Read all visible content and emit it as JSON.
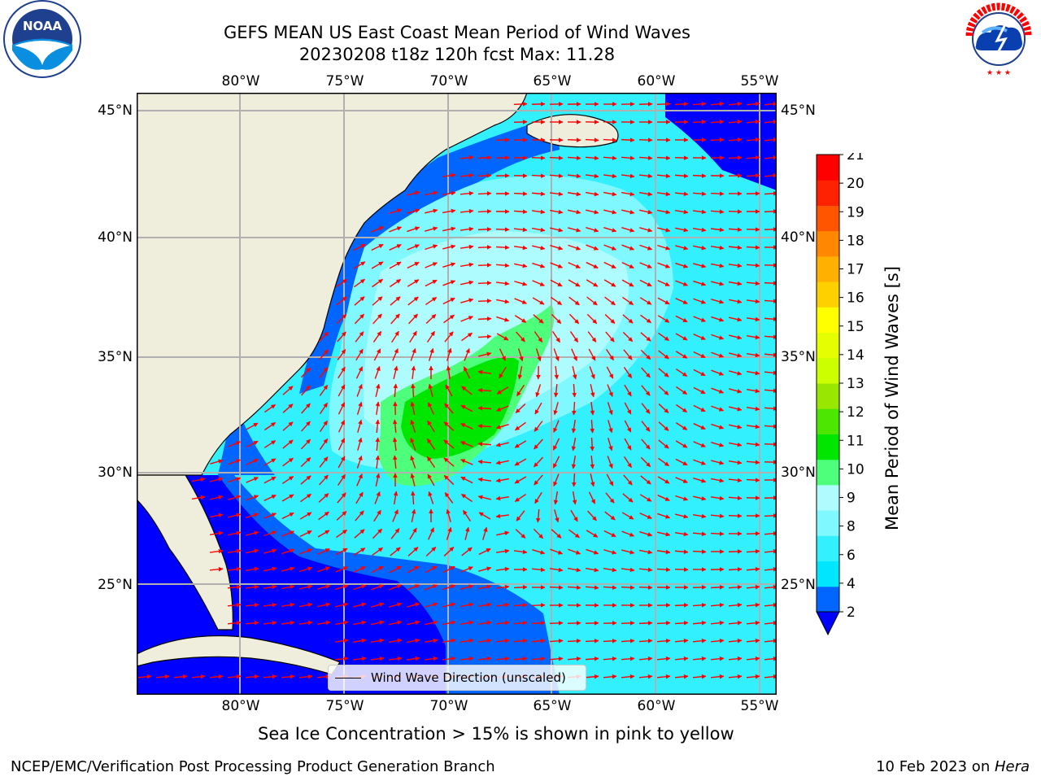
{
  "header": {
    "title_line1": "GEFS MEAN US East Coast Mean Period of Wind Waves",
    "title_line2": "20230208 t18z 120h fcst   Max: 11.28"
  },
  "logos": {
    "noaa": "NOAA",
    "nws": "NATIONAL WEATHER SERVICE"
  },
  "map": {
    "lon_ticks_top": [
      "80°W",
      "75°W",
      "70°W",
      "65°W",
      "60°W",
      "55°W"
    ],
    "lon_ticks_bottom": [
      "80°W",
      "75°W",
      "70°W",
      "65°W",
      "60°W",
      "55°W"
    ],
    "lat_ticks_left": [
      "45°N",
      "40°N",
      "35°N",
      "30°N",
      "25°N"
    ],
    "lat_ticks_right": [
      "45°N",
      "40°N",
      "35°N",
      "30°N",
      "25°N"
    ],
    "legend_label": "Wind Wave Direction (unscaled)",
    "arrow_color": "#ff0000",
    "land_color": "#efeddc"
  },
  "colorbar": {
    "label": "Mean Period of Wind Waves [s]",
    "ticks": [
      "2",
      "4",
      "6",
      "8",
      "9",
      "10",
      "11",
      "12",
      "13",
      "14",
      "15",
      "16",
      "17",
      "18",
      "19",
      "20",
      "21"
    ],
    "colors": [
      "#0066ff",
      "#00e6ff",
      "#33f0ff",
      "#80f8ff",
      "#aefcfd",
      "#4dff7a",
      "#00e600",
      "#4de600",
      "#99e600",
      "#ccff00",
      "#e6ff00",
      "#ffff00",
      "#ffd000",
      "#ffb000",
      "#ff8800",
      "#ff5500",
      "#ff2200",
      "#ff0000"
    ],
    "extend_color": "#0000ff"
  },
  "subtitle": "Sea Ice Concentration > 15% is shown in pink to yellow",
  "footer": {
    "left": "NCEP/EMC/Verification Post Processing Product Generation Branch",
    "date": "10 Feb 2023 on ",
    "machine": "Hera"
  }
}
